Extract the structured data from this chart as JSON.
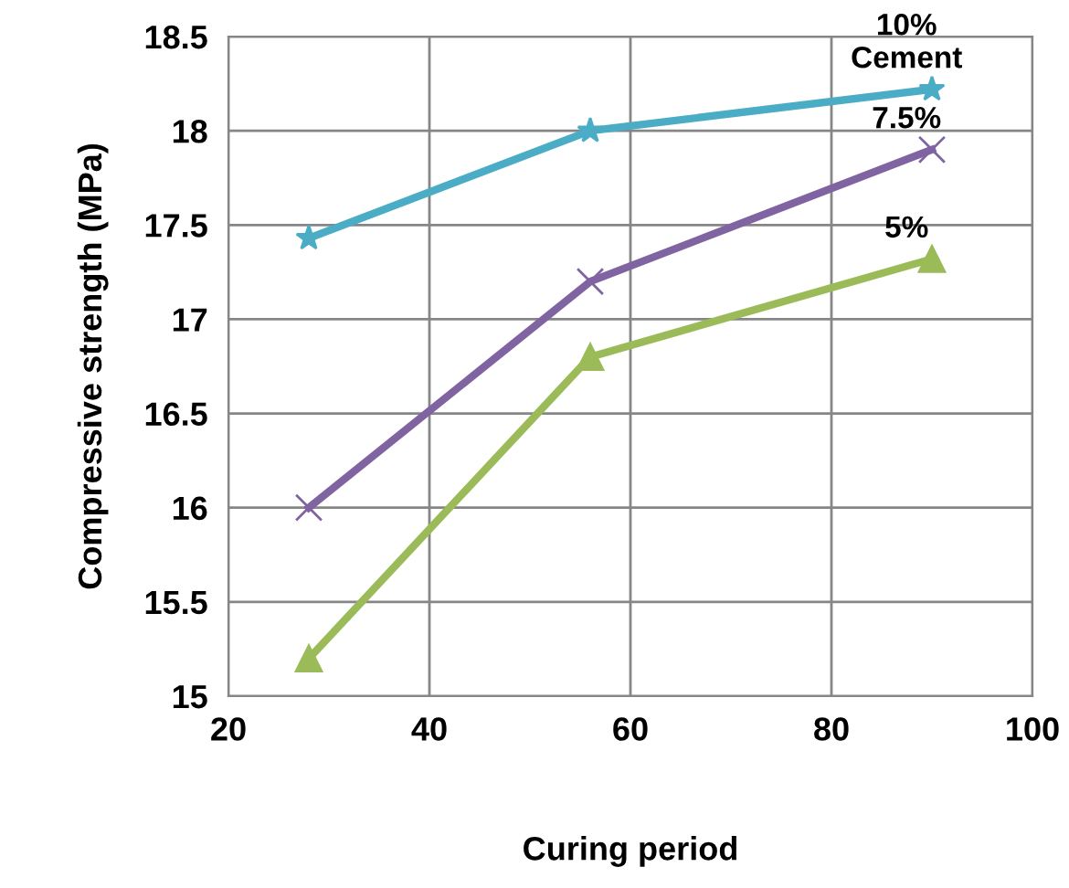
{
  "chart_data": {
    "type": "line",
    "xlabel": "Curing period",
    "ylabel": "Compressive strength (MPa)",
    "x": [
      28,
      56,
      90
    ],
    "series": [
      {
        "name": "10%\nCement",
        "color": "#4bacc6",
        "marker": "star",
        "values": [
          17.43,
          18.0,
          18.22
        ]
      },
      {
        "name": "7.5%",
        "color": "#8064a2",
        "marker": "cross",
        "values": [
          16.0,
          17.2,
          17.9
        ]
      },
      {
        "name": "5%",
        "color": "#9bbb59",
        "marker": "triangle",
        "values": [
          15.2,
          16.8,
          17.32
        ]
      }
    ],
    "xlim": [
      20,
      100
    ],
    "xticks": [
      20,
      40,
      60,
      80,
      100
    ],
    "ylim": [
      15,
      18.5
    ],
    "yticks": [
      15,
      15.5,
      16,
      16.5,
      17,
      17.5,
      18,
      18.5
    ],
    "grid": true,
    "line_style": "solid",
    "legend": false
  }
}
